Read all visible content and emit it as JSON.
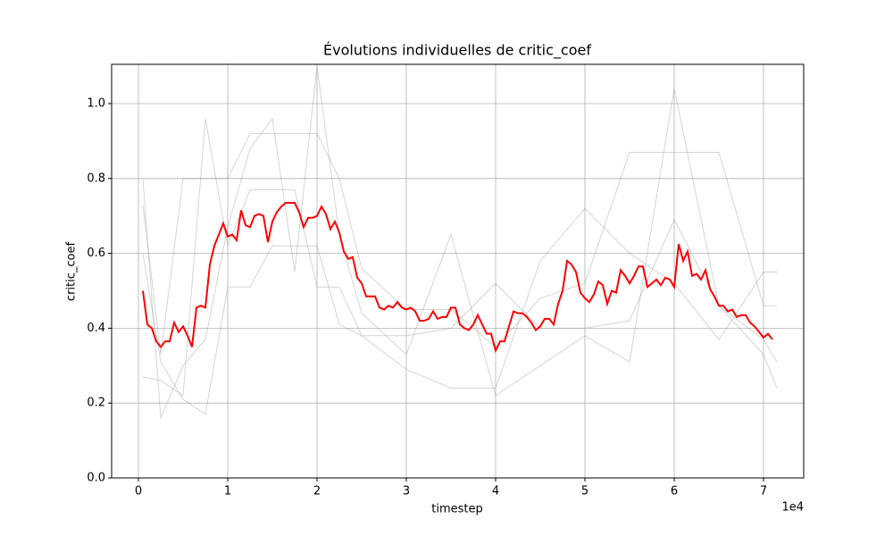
{
  "chart_data": {
    "type": "line",
    "title": "Évolutions individuelles de critic_coef",
    "x_label": "timestep",
    "y_label": "critic_coef",
    "x_offset_label": "1e4",
    "xlim": [
      -3000,
      74500
    ],
    "ylim": [
      0,
      1.105
    ],
    "xticks": [
      {
        "value": 0,
        "label": "0"
      },
      {
        "value": 10000,
        "label": "1"
      },
      {
        "value": 20000,
        "label": "2"
      },
      {
        "value": 30000,
        "label": "3"
      },
      {
        "value": 40000,
        "label": "4"
      },
      {
        "value": 50000,
        "label": "5"
      },
      {
        "value": 60000,
        "label": "6"
      },
      {
        "value": 70000,
        "label": "7"
      }
    ],
    "yticks": [
      {
        "value": 0,
        "label": "0.0"
      },
      {
        "value": 0.2,
        "label": "0.2"
      },
      {
        "value": 0.4,
        "label": "0.4"
      },
      {
        "value": 0.6,
        "label": "0.6"
      },
      {
        "value": 0.8,
        "label": "0.8"
      },
      {
        "value": 1.0,
        "label": "1.0"
      }
    ],
    "grid": true,
    "series": [
      {
        "color": "#a0a0a0",
        "width": 1,
        "x": [
          500,
          2500,
          5000,
          7500,
          10000,
          12500,
          15000,
          17500,
          20000,
          22500,
          25000,
          30000,
          35000,
          40000,
          45000,
          50000,
          55000,
          60000,
          65000,
          70000,
          71500
        ],
        "values": [
          0.73,
          0.33,
          0.8,
          0.8,
          0.8,
          0.92,
          0.92,
          0.92,
          0.92,
          0.8,
          0.56,
          0.45,
          0.45,
          0.35,
          0.48,
          0.52,
          0.87,
          0.87,
          0.87,
          0.46,
          0.46
        ]
      },
      {
        "color": "#a0a0a0",
        "width": 1,
        "x": [
          500,
          2500,
          5000,
          7500,
          10000,
          12500,
          15000,
          17500,
          20000,
          22500,
          25000,
          30000,
          35000,
          40000,
          45000,
          50000,
          55000,
          60000,
          65000,
          70000,
          71500
        ],
        "values": [
          0.27,
          0.26,
          0.22,
          0.96,
          0.62,
          0.77,
          0.77,
          0.77,
          0.51,
          0.51,
          0.38,
          0.38,
          0.4,
          0.52,
          0.4,
          0.4,
          0.42,
          0.69,
          0.46,
          0.37,
          0.31
        ]
      },
      {
        "color": "#a0a0a0",
        "width": 1,
        "x": [
          500,
          2500,
          5000,
          7500,
          10000,
          12500,
          15000,
          17500,
          20000,
          22500,
          25000,
          30000,
          35000,
          40000,
          45000,
          50000,
          55000,
          60000,
          65000,
          70000,
          71500
        ],
        "values": [
          0.6,
          0.31,
          0.21,
          0.17,
          0.51,
          0.51,
          0.62,
          0.62,
          0.62,
          0.41,
          0.38,
          0.29,
          0.24,
          0.24,
          0.58,
          0.72,
          0.6,
          0.52,
          0.37,
          0.55,
          0.55
        ]
      },
      {
        "color": "#a0a0a0",
        "width": 1,
        "x": [
          500,
          2500,
          5000,
          7500,
          10000,
          12500,
          15000,
          17500,
          20000,
          22500,
          25000,
          30000,
          35000,
          40000,
          45000,
          50000,
          55000,
          60000,
          65000,
          70000,
          71500
        ],
        "values": [
          0.8,
          0.16,
          0.3,
          0.37,
          0.67,
          0.88,
          0.96,
          0.55,
          1.1,
          0.65,
          0.44,
          0.33,
          0.65,
          0.22,
          0.3,
          0.38,
          0.31,
          1.04,
          0.46,
          0.33,
          0.24
        ]
      },
      {
        "color": "#ff0000",
        "width": 2,
        "x": [
          500,
          1000,
          1500,
          2000,
          2500,
          3000,
          3500,
          4000,
          4500,
          5000,
          5500,
          6000,
          6500,
          7000,
          7500,
          8000,
          8500,
          9000,
          9500,
          10000,
          10500,
          11000,
          11500,
          12000,
          12500,
          13000,
          13500,
          14000,
          14500,
          15000,
          15500,
          16000,
          16500,
          17000,
          17500,
          18000,
          18500,
          19000,
          19500,
          20000,
          20500,
          21000,
          21500,
          22000,
          22500,
          23000,
          23500,
          24000,
          24500,
          25000,
          25500,
          26000,
          26500,
          27000,
          27500,
          28000,
          28500,
          29000,
          29500,
          30000,
          30500,
          31000,
          31500,
          32000,
          32500,
          33000,
          33500,
          34000,
          34500,
          35000,
          35500,
          36000,
          36500,
          37000,
          37500,
          38000,
          38500,
          39000,
          39500,
          40000,
          40500,
          41000,
          41500,
          42000,
          42500,
          43000,
          43500,
          44000,
          44500,
          45000,
          45500,
          46000,
          46500,
          47000,
          47500,
          48000,
          48500,
          49000,
          49500,
          50000,
          50500,
          51000,
          51500,
          52000,
          52500,
          53000,
          53500,
          54000,
          54500,
          55000,
          55500,
          56000,
          56500,
          57000,
          57500,
          58000,
          58500,
          59000,
          59500,
          60000,
          60500,
          61000,
          61500,
          62000,
          62500,
          63000,
          63500,
          64000,
          64500,
          65000,
          65500,
          66000,
          66500,
          67000,
          67500,
          68000,
          68500,
          69000,
          69500,
          70000,
          70500,
          71000
        ],
        "values": [
          0.5,
          0.41,
          0.4,
          0.365,
          0.35,
          0.365,
          0.365,
          0.415,
          0.39,
          0.405,
          0.38,
          0.35,
          0.455,
          0.46,
          0.455,
          0.57,
          0.62,
          0.65,
          0.68,
          0.645,
          0.65,
          0.635,
          0.715,
          0.675,
          0.67,
          0.7,
          0.705,
          0.7,
          0.63,
          0.685,
          0.71,
          0.725,
          0.735,
          0.735,
          0.735,
          0.71,
          0.67,
          0.695,
          0.695,
          0.7,
          0.725,
          0.705,
          0.665,
          0.685,
          0.655,
          0.605,
          0.585,
          0.59,
          0.535,
          0.52,
          0.485,
          0.485,
          0.485,
          0.455,
          0.45,
          0.46,
          0.455,
          0.47,
          0.455,
          0.45,
          0.455,
          0.445,
          0.42,
          0.42,
          0.425,
          0.445,
          0.425,
          0.43,
          0.43,
          0.455,
          0.455,
          0.41,
          0.4,
          0.395,
          0.41,
          0.435,
          0.41,
          0.385,
          0.385,
          0.34,
          0.365,
          0.365,
          0.405,
          0.445,
          0.44,
          0.44,
          0.43,
          0.415,
          0.395,
          0.405,
          0.425,
          0.425,
          0.41,
          0.465,
          0.5,
          0.58,
          0.57,
          0.55,
          0.495,
          0.48,
          0.47,
          0.49,
          0.525,
          0.515,
          0.465,
          0.5,
          0.495,
          0.555,
          0.54,
          0.52,
          0.54,
          0.565,
          0.565,
          0.51,
          0.52,
          0.53,
          0.515,
          0.535,
          0.53,
          0.51,
          0.625,
          0.58,
          0.605,
          0.54,
          0.545,
          0.53,
          0.555,
          0.505,
          0.485,
          0.46,
          0.46,
          0.445,
          0.45,
          0.43,
          0.435,
          0.435,
          0.415,
          0.405,
          0.39,
          0.375,
          0.385,
          0.37
        ]
      }
    ]
  }
}
